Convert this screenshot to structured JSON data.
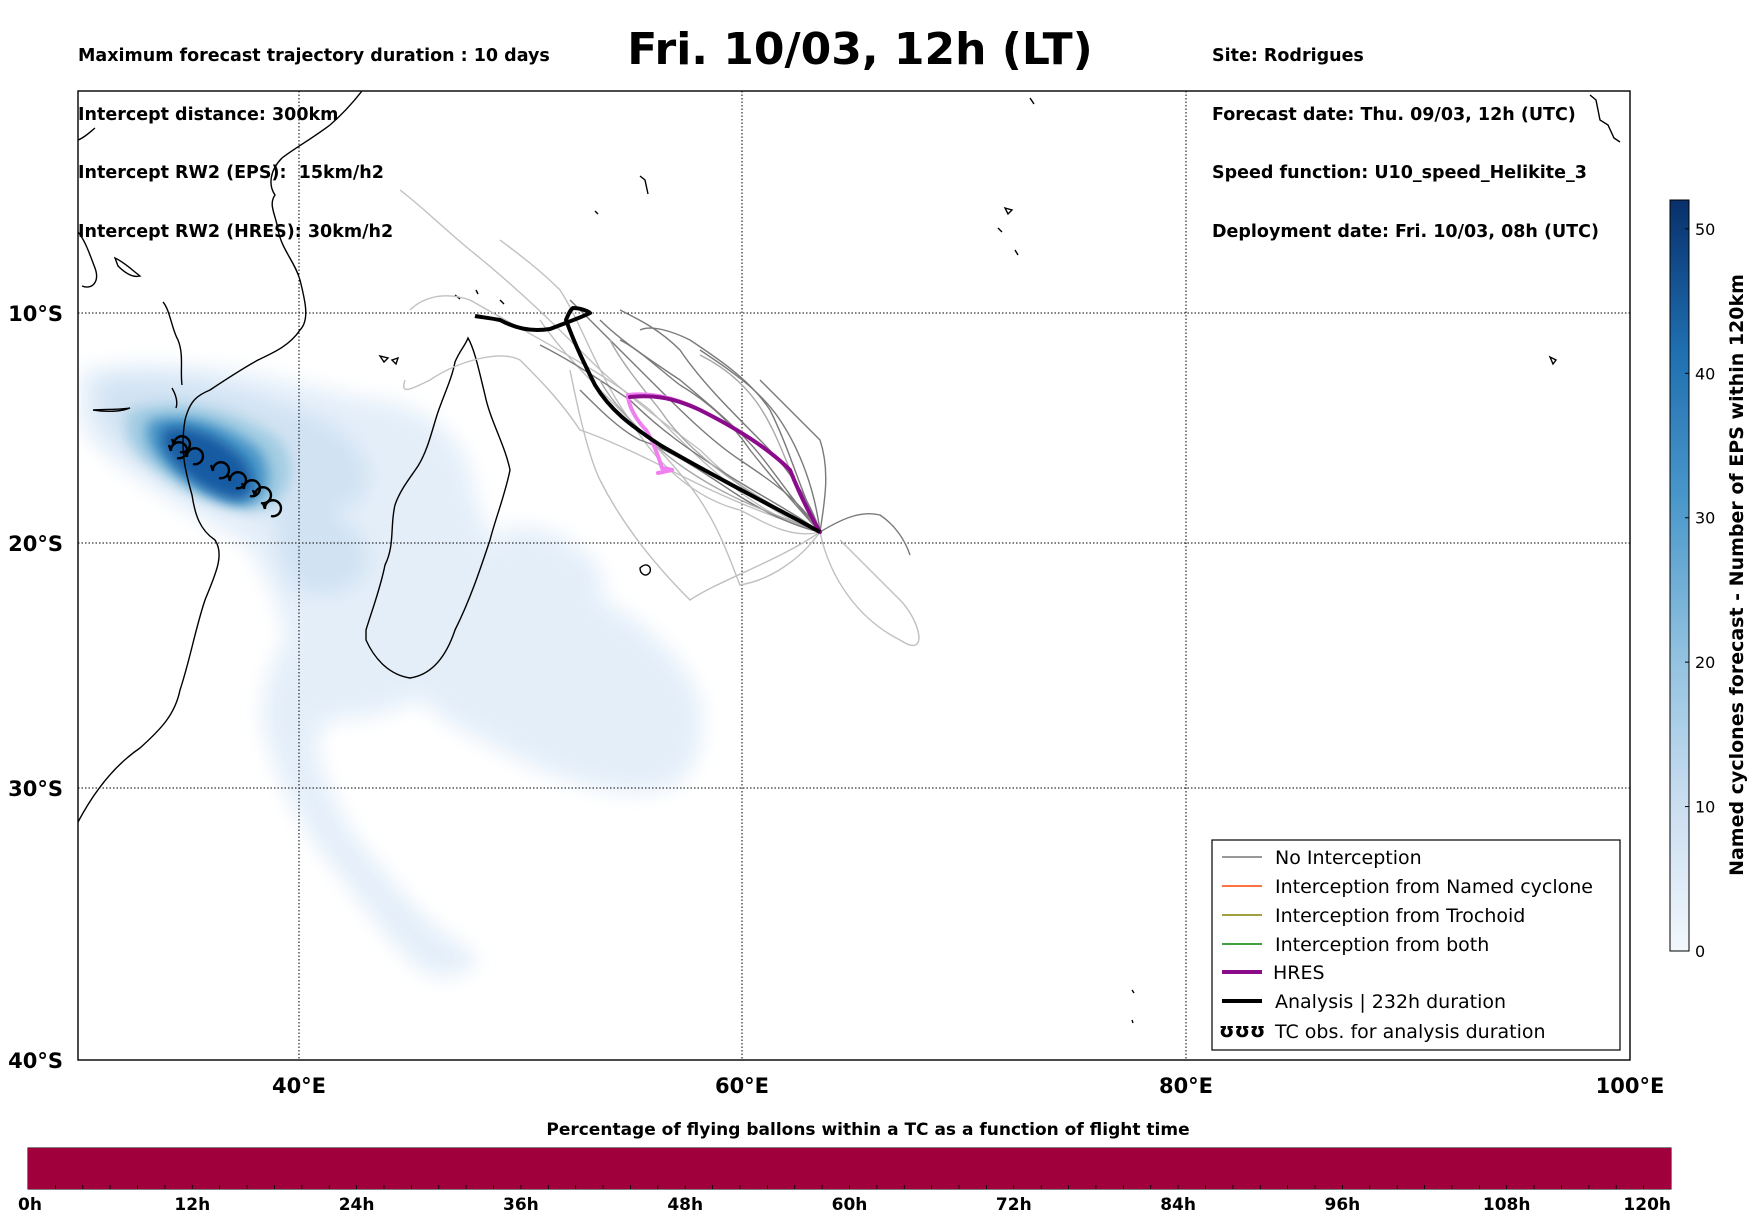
{
  "header": {
    "left_lines": [
      "Maximum forecast trajectory duration : 10 days",
      "Intercept distance: 300km",
      "Intercept RW2 (EPS):  15km/h2",
      "Intercept RW2 (HRES): 30km/h2"
    ],
    "title": "Fri. 10/03, 12h (LT)",
    "right_lines": [
      "Site: Rodrigues",
      "Forecast date: Thu. 09/03, 12h (UTC)",
      "Speed function: U10_speed_Helikite_3",
      "Deployment date: Fri. 10/03, 08h (UTC)"
    ]
  },
  "map": {
    "lat_labels": [
      "10°S",
      "20°S",
      "30°S",
      "40°S"
    ],
    "lon_labels": [
      "40°E",
      "60°E",
      "80°E",
      "100°E"
    ],
    "lat_range": [
      -40,
      0.5
    ],
    "lon_range": [
      30,
      100
    ],
    "colors": {
      "hres": "#8b0c8b",
      "hres_pink": "#f07ff0",
      "analysis": "#000000",
      "no_interception": "#777777",
      "named_cyclone": "#ff4500",
      "trochoid": "#808000",
      "both": "#008000",
      "density_light": "#e3eef9",
      "density_dark": "#08306b"
    }
  },
  "legend": {
    "items": [
      {
        "label": "No Interception",
        "style": "thin",
        "color": "#777777"
      },
      {
        "label": "Interception from Named cyclone",
        "style": "thin",
        "color": "#ff4500"
      },
      {
        "label": "Interception from Trochoid",
        "style": "thin",
        "color": "#808000"
      },
      {
        "label": "Interception from both",
        "style": "thin",
        "color": "#008000"
      },
      {
        "label": "HRES",
        "style": "thick",
        "color": "#8b0c8b"
      },
      {
        "label": "Analysis | 232h duration",
        "style": "thick",
        "color": "#000000"
      },
      {
        "label": "TC obs. for analysis duration",
        "style": "tc",
        "color": "#000000",
        "glyph": "ʊʊʊ"
      }
    ]
  },
  "colorbar": {
    "label": "Named cyclones forecast - Number of EPS within 120km",
    "ticks": [
      "0",
      "10",
      "20",
      "30",
      "40",
      "50"
    ],
    "max_value": 52
  },
  "timebar": {
    "title": "Percentage of flying ballons within a TC as a function of flight time",
    "ticks": [
      "0h",
      "12h",
      "24h",
      "36h",
      "48h",
      "60h",
      "72h",
      "84h",
      "96h",
      "108h",
      "120h"
    ],
    "fill_color": "#a0003c",
    "fill_percent": 100
  }
}
